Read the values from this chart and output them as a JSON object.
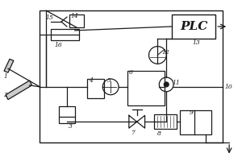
{
  "bg_color": "#ffffff",
  "line_color": "#1a1a1a",
  "fig_width": 3.0,
  "fig_height": 2.0,
  "dpi": 100,
  "plc_label": "PLC",
  "label_fontsize": 5.5
}
